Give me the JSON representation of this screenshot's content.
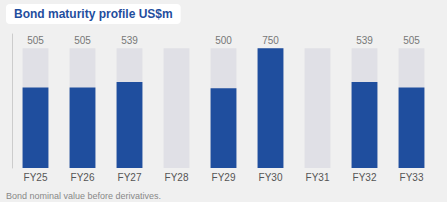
{
  "chart_data": {
    "type": "bar",
    "title": "Bond maturity profile US$m",
    "footnote": "Bond nominal value before derivatives.",
    "categories": [
      "FY25",
      "FY26",
      "FY27",
      "FY28",
      "FY29",
      "FY30",
      "FY31",
      "FY32",
      "FY33"
    ],
    "values": [
      505,
      505,
      539,
      0,
      500,
      750,
      0,
      539,
      505
    ],
    "value_labels": [
      "505",
      "505",
      "539",
      null,
      "500",
      "750",
      null,
      "539",
      "505"
    ],
    "data_labels": true,
    "color": "#1F4E9E",
    "background_bars": {
      "value": 750,
      "color": "#E0E0E6"
    },
    "background_color": "#F0F0F0",
    "title_color": "#1F4E9E",
    "title_background": "#FFFFFF",
    "ylim": [
      0,
      840
    ],
    "yticks": [],
    "tick_labels": "x",
    "grid": false
  }
}
